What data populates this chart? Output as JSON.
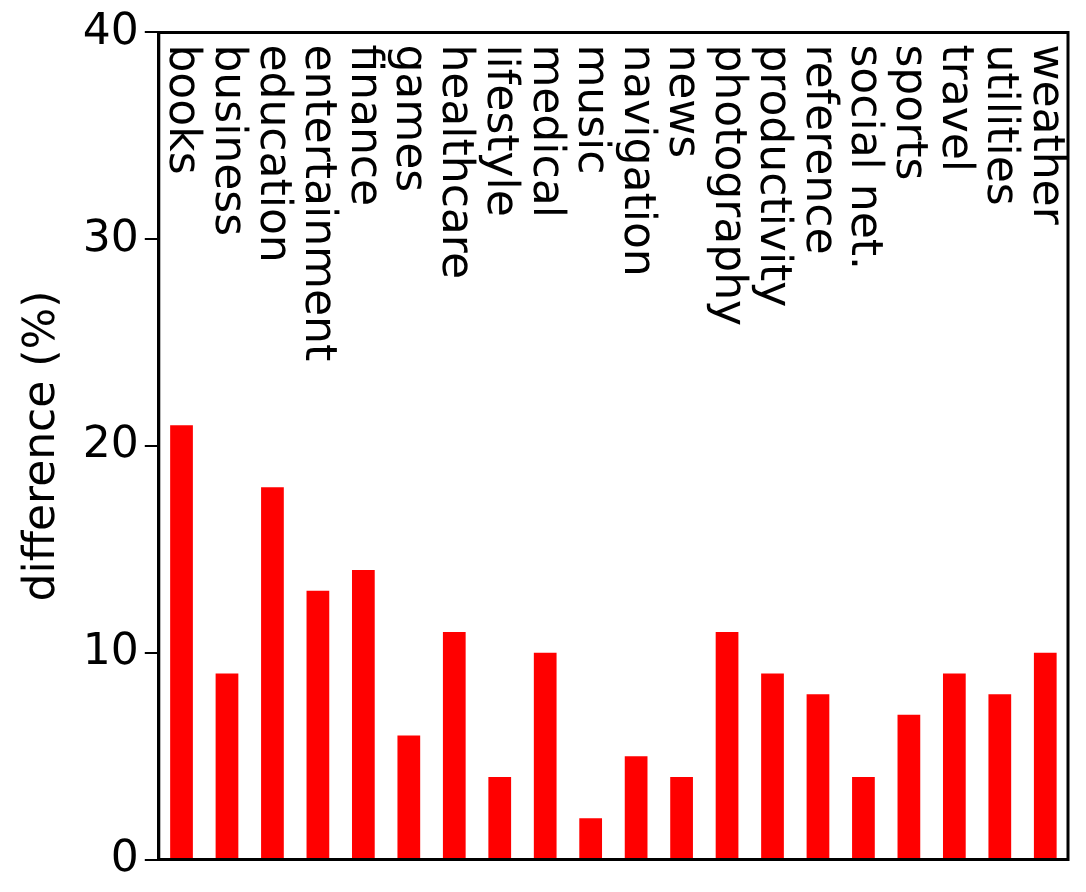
{
  "chart_data": {
    "type": "bar",
    "ylabel": "difference (%)",
    "categories": [
      "books",
      "business",
      "education",
      "entertainment",
      "finance",
      "games",
      "healthcare",
      "lifestyle",
      "medical",
      "music",
      "navigation",
      "news",
      "photography",
      "productivity",
      "reference",
      "social net.",
      "sports",
      "travel",
      "utilities",
      "weather"
    ],
    "values": [
      21,
      9,
      18,
      13,
      14,
      6,
      11,
      4,
      10,
      2,
      5,
      4,
      11,
      9,
      8,
      4,
      7,
      9,
      8,
      10
    ],
    "color": "#ff0000",
    "ylim": [
      0,
      40
    ],
    "yticks": [
      0,
      10,
      20,
      30,
      40
    ],
    "grid": false,
    "legend": false
  }
}
